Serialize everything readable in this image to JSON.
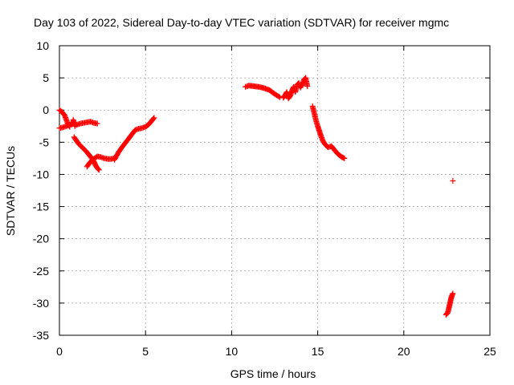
{
  "chart_data": {
    "type": "scatter",
    "title": "Day 103 of 2022, Sidereal Day-to-day VTEC variation (SDTVAR) for receiver mgmc",
    "xlabel": "GPS time / hours",
    "ylabel": "SDTVAR / TECUs",
    "xlim": [
      0,
      25
    ],
    "ylim": [
      -35,
      10
    ],
    "xticks": [
      0,
      5,
      10,
      15,
      20,
      25
    ],
    "xtick_labels": [
      "0",
      "5",
      "10",
      "15",
      "20",
      "25"
    ],
    "yticks": [
      10,
      5,
      0,
      -5,
      -10,
      -15,
      -20,
      -25,
      -30,
      -35
    ],
    "ytick_labels": [
      "10",
      "5",
      "0",
      "-5",
      "-10",
      "-15",
      "-20",
      "-25",
      "-30",
      "-35"
    ],
    "grid": true,
    "marker": "plus",
    "color": "#ff0000",
    "series": [
      {
        "name": "SDTVAR",
        "segments": [
          [
            [
              0.0,
              0.0
            ],
            [
              0.15,
              -0.3
            ],
            [
              0.3,
              -0.8
            ],
            [
              0.4,
              -1.5
            ],
            [
              0.5,
              -2.2
            ],
            [
              0.6,
              -2.6
            ]
          ],
          [
            [
              0.0,
              -2.8
            ],
            [
              0.2,
              -2.7
            ],
            [
              0.4,
              -2.5
            ],
            [
              0.6,
              -2.3
            ],
            [
              0.8,
              -2.0
            ],
            [
              1.0,
              -2.3
            ],
            [
              1.2,
              -2.1
            ],
            [
              1.4,
              -2.0
            ],
            [
              1.6,
              -1.9
            ],
            [
              1.8,
              -1.8
            ],
            [
              2.0,
              -2.0
            ],
            [
              2.2,
              -2.1
            ]
          ],
          [
            [
              0.8,
              -1.5
            ],
            [
              0.9,
              -2.5
            ]
          ],
          [
            [
              0.85,
              -4.2
            ],
            [
              1.0,
              -4.8
            ],
            [
              1.1,
              -5.2
            ],
            [
              1.25,
              -5.6
            ],
            [
              1.4,
              -6.0
            ],
            [
              1.55,
              -6.4
            ],
            [
              1.7,
              -6.9
            ],
            [
              1.85,
              -7.4
            ],
            [
              2.0,
              -8.0
            ],
            [
              2.1,
              -8.6
            ],
            [
              2.2,
              -9.0
            ],
            [
              2.3,
              -9.3
            ]
          ],
          [
            [
              1.6,
              -8.8
            ],
            [
              1.75,
              -8.2
            ],
            [
              1.9,
              -7.8
            ],
            [
              2.05,
              -7.5
            ],
            [
              2.2,
              -7.2
            ],
            [
              2.4,
              -7.3
            ],
            [
              2.6,
              -7.5
            ],
            [
              2.8,
              -7.6
            ],
            [
              3.0,
              -7.6
            ],
            [
              3.2,
              -7.5
            ]
          ],
          [
            [
              3.2,
              -7.7
            ],
            [
              3.4,
              -6.7
            ],
            [
              3.6,
              -5.9
            ],
            [
              3.8,
              -5.2
            ],
            [
              4.0,
              -4.5
            ],
            [
              4.2,
              -3.8
            ],
            [
              4.4,
              -3.1
            ],
            [
              4.6,
              -2.9
            ],
            [
              4.8,
              -2.8
            ],
            [
              5.0,
              -2.6
            ],
            [
              5.2,
              -2.2
            ],
            [
              5.35,
              -1.7
            ],
            [
              5.5,
              -1.2
            ]
          ],
          [
            [
              10.8,
              3.6
            ],
            [
              11.0,
              3.8
            ],
            [
              11.3,
              3.7
            ],
            [
              11.6,
              3.6
            ],
            [
              11.9,
              3.4
            ],
            [
              12.2,
              3.1
            ],
            [
              12.5,
              2.5
            ],
            [
              12.8,
              2.0
            ]
          ],
          [
            [
              13.0,
              1.9
            ],
            [
              13.1,
              2.3
            ],
            [
              13.2,
              2.8
            ],
            [
              13.3,
              1.8
            ],
            [
              13.4,
              2.2
            ],
            [
              13.5,
              3.0
            ],
            [
              13.6,
              3.6
            ],
            [
              13.7,
              2.8
            ],
            [
              13.8,
              3.9
            ],
            [
              13.9,
              4.2
            ],
            [
              14.0,
              3.5
            ],
            [
              14.1,
              4.0
            ],
            [
              14.2,
              4.7
            ],
            [
              14.3,
              5.0
            ],
            [
              14.4,
              3.7
            ]
          ],
          [
            [
              14.7,
              0.6
            ],
            [
              14.8,
              -0.5
            ],
            [
              14.9,
              -1.6
            ],
            [
              15.0,
              -2.5
            ],
            [
              15.1,
              -3.3
            ],
            [
              15.2,
              -4.1
            ],
            [
              15.3,
              -4.8
            ],
            [
              15.45,
              -5.4
            ],
            [
              15.6,
              -5.8
            ],
            [
              15.8,
              -5.6
            ],
            [
              16.0,
              -6.3
            ],
            [
              16.2,
              -6.9
            ],
            [
              16.4,
              -7.3
            ],
            [
              16.55,
              -7.5
            ]
          ],
          [
            [
              22.85,
              -11.0
            ]
          ],
          [
            [
              22.45,
              -31.8
            ],
            [
              22.55,
              -31.5
            ],
            [
              22.6,
              -31.0
            ],
            [
              22.65,
              -30.4
            ],
            [
              22.7,
              -29.8
            ],
            [
              22.75,
              -29.2
            ],
            [
              22.8,
              -28.8
            ],
            [
              22.85,
              -28.5
            ]
          ]
        ]
      }
    ]
  }
}
